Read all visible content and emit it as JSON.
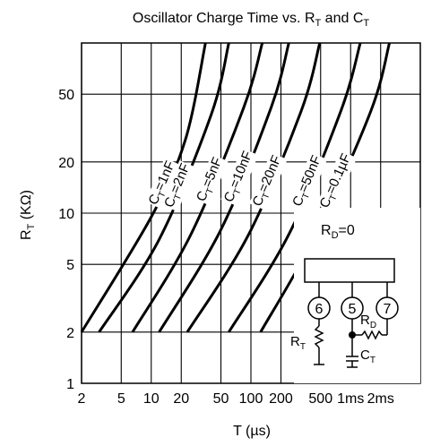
{
  "chart_data": {
    "type": "line",
    "title_main": "Oscillator Charge Time vs. R",
    "title_sub1": "T",
    "title_mid": " and C",
    "title_sub2": "T",
    "xlabel": "T (µs)",
    "ylabel_main": "R",
    "ylabel_sub": "T",
    "ylabel_unit": " (KΩ)",
    "x_scale": "log",
    "y_scale": "log",
    "xlim": [
      2,
      5000
    ],
    "ylim": [
      1,
      100
    ],
    "grid": true,
    "x_ticks": [
      {
        "value": 2,
        "label": "2"
      },
      {
        "value": 5,
        "label": "5"
      },
      {
        "value": 10,
        "label": "10"
      },
      {
        "value": 20,
        "label": "20"
      },
      {
        "value": 50,
        "label": "50"
      },
      {
        "value": 100,
        "label": "100"
      },
      {
        "value": 200,
        "label": "200"
      },
      {
        "value": 500,
        "label": "500"
      },
      {
        "value": 1000,
        "label": "1ms"
      },
      {
        "value": 2000,
        "label": "2ms"
      }
    ],
    "y_ticks": [
      {
        "value": 1,
        "label": "1"
      },
      {
        "value": 2,
        "label": "2"
      },
      {
        "value": 5,
        "label": "5"
      },
      {
        "value": 10,
        "label": "10"
      },
      {
        "value": 20,
        "label": "20"
      },
      {
        "value": 50,
        "label": "50"
      }
    ],
    "series": [
      {
        "name_main": "C",
        "name_sub": "T",
        "name_val": "=1nF",
        "points": [
          [
            2,
            2
          ],
          [
            10,
            9.5
          ],
          [
            22,
            27
          ],
          [
            35,
            100
          ]
        ]
      },
      {
        "name_main": "C",
        "name_sub": "T",
        "name_val": "=2nF",
        "points": [
          [
            3,
            2
          ],
          [
            12,
            7
          ],
          [
            40,
            38
          ],
          [
            60,
            100
          ]
        ]
      },
      {
        "name_main": "C",
        "name_sub": "T",
        "name_val": "=5nF",
        "points": [
          [
            6.5,
            2
          ],
          [
            25,
            7.5
          ],
          [
            85,
            42
          ],
          [
            130,
            100
          ]
        ]
      },
      {
        "name_main": "C",
        "name_sub": "T",
        "name_val": "=10nF",
        "points": [
          [
            12,
            2
          ],
          [
            50,
            8
          ],
          [
            160,
            42
          ],
          [
            240,
            100
          ]
        ]
      },
      {
        "name_main": "C",
        "name_sub": "T",
        "name_val": "=20nF",
        "points": [
          [
            23,
            2
          ],
          [
            95,
            7.5
          ],
          [
            320,
            40
          ],
          [
            490,
            100
          ]
        ]
      },
      {
        "name_main": "C",
        "name_sub": "T",
        "name_val": "=50nF",
        "points": [
          [
            60,
            2
          ],
          [
            240,
            7.5
          ],
          [
            800,
            40
          ],
          [
            1250,
            100
          ]
        ]
      },
      {
        "name_main": "C",
        "name_sub": "T",
        "name_val": "=0.1µF",
        "points": [
          [
            125,
            2
          ],
          [
            450,
            7.5
          ],
          [
            1600,
            40
          ],
          [
            2450,
            100
          ]
        ]
      }
    ]
  },
  "inset": {
    "rd_label_main": "R",
    "rd_label_sub": "D",
    "rd_label_val": "=0",
    "pins": [
      "6",
      "5",
      "7"
    ],
    "rt_main": "R",
    "rt_sub": "T",
    "rd_main": "R",
    "rd_sub": "D",
    "ct_main": "C",
    "ct_sub": "T"
  }
}
